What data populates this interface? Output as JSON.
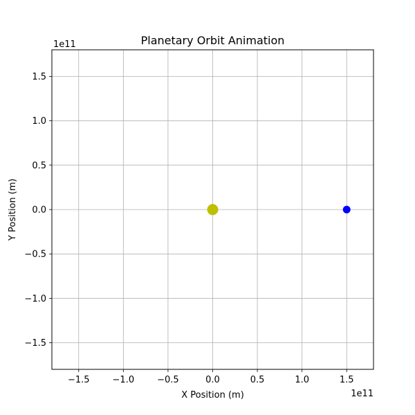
{
  "chart_data": {
    "type": "scatter",
    "title": "Planetary Orbit Animation",
    "xlabel": "X Position (m)",
    "ylabel": "Y Position (m)",
    "xlim": [
      -180000000000.0,
      180000000000.0
    ],
    "ylim": [
      -180000000000.0,
      180000000000.0
    ],
    "x_offset_label": "1e11",
    "y_offset_label": "1e11",
    "x_ticks": [
      -1.5,
      -1.0,
      -0.5,
      0.0,
      0.5,
      1.0,
      1.5
    ],
    "y_ticks": [
      -1.5,
      -1.0,
      -0.5,
      0.0,
      0.5,
      1.0,
      1.5
    ],
    "x_tick_labels": [
      "−1.5",
      "−1.0",
      "−0.5",
      "0.0",
      "0.5",
      "1.0",
      "1.5"
    ],
    "y_tick_labels": [
      "−1.5",
      "−1.0",
      "−0.5",
      "0.0",
      "0.5",
      "1.0",
      "1.5"
    ],
    "tick_scale": 100000000000.0,
    "grid": true,
    "points": [
      {
        "x": 0,
        "y": 0,
        "color": "#bfbf00",
        "size": "large"
      },
      {
        "x": 150000000000.0,
        "y": 0,
        "color": "#0000ff",
        "size": "small"
      }
    ]
  }
}
